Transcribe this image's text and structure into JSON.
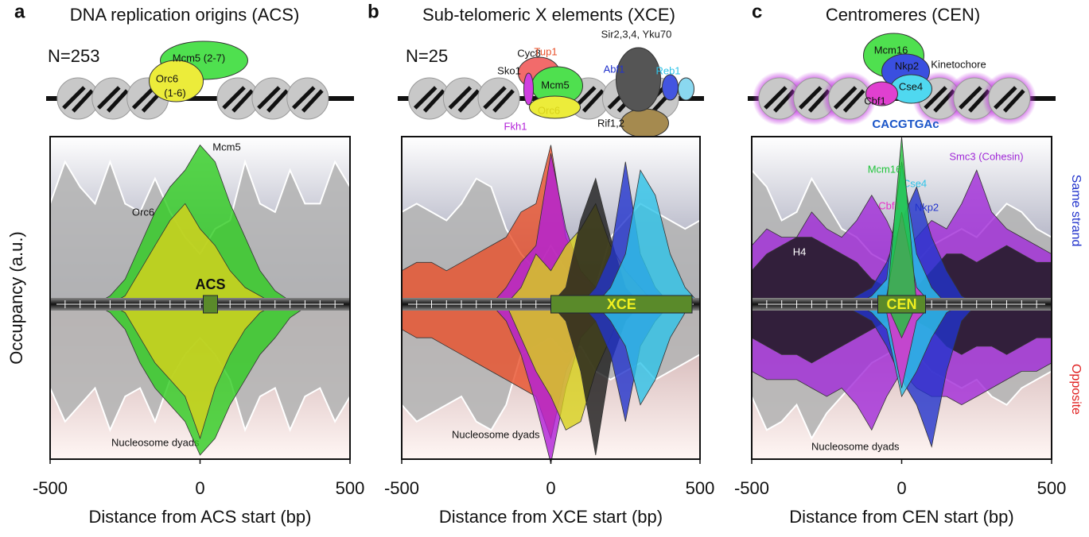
{
  "chart_data": [
    {
      "type": "area",
      "panel": "a",
      "title": "DNA replication origins (ACS)",
      "n_label": "N=253",
      "feature": "ACS",
      "xlabel": "Distance from ACS start (bp)",
      "ylabel": "Occupancy (a.u.)",
      "xlim": [
        -500,
        500
      ],
      "xticks": [
        -500,
        0,
        500
      ],
      "ylim": [
        -100,
        100
      ],
      "diagram_labels": [
        "Mcm5 (2-7)",
        "Orc6",
        "(1-6)"
      ],
      "x": [
        -500,
        -450,
        -400,
        -350,
        -300,
        -250,
        -200,
        -150,
        -100,
        -50,
        0,
        50,
        100,
        150,
        200,
        250,
        300,
        350,
        400,
        450,
        500
      ],
      "series": [
        {
          "name": "Nucleosome dyads",
          "color": "#b5b5b5",
          "values": [
            60,
            85,
            70,
            60,
            85,
            60,
            55,
            75,
            55,
            40,
            30,
            45,
            50,
            85,
            60,
            55,
            80,
            60,
            60,
            85,
            70
          ],
          "opposite": [
            -50,
            -70,
            -60,
            -50,
            -75,
            -55,
            -50,
            -70,
            -45,
            -30,
            -20,
            -30,
            -45,
            -75,
            -55,
            -50,
            -75,
            -55,
            -50,
            -70,
            -55
          ]
        },
        {
          "name": "Mcm5",
          "color": "#2ecc1f",
          "values": [
            0,
            0,
            0,
            0,
            5,
            15,
            35,
            55,
            70,
            80,
            95,
            85,
            60,
            40,
            20,
            8,
            2,
            0,
            0,
            0,
            0
          ],
          "opposite": [
            0,
            0,
            0,
            0,
            -5,
            -15,
            -35,
            -50,
            -60,
            -70,
            -90,
            -80,
            -60,
            -45,
            -30,
            -20,
            -8,
            -2,
            0,
            0,
            0
          ]
        },
        {
          "name": "Orc6",
          "color": "#d8d21c",
          "values": [
            0,
            0,
            0,
            0,
            0,
            5,
            20,
            35,
            50,
            60,
            45,
            35,
            20,
            10,
            5,
            0,
            0,
            0,
            0,
            0,
            0
          ],
          "opposite": [
            0,
            0,
            0,
            0,
            0,
            -5,
            -20,
            -35,
            -45,
            -55,
            -80,
            -50,
            -30,
            -15,
            -5,
            0,
            0,
            0,
            0,
            0,
            0
          ]
        }
      ]
    },
    {
      "type": "area",
      "panel": "b",
      "title": "Sub-telomeric X elements (XCE)",
      "n_label": "N=25",
      "feature": "XCE",
      "xlabel": "Distance from XCE start (bp)",
      "xlim": [
        -500,
        500
      ],
      "xticks": [
        -500,
        0,
        500
      ],
      "ylim": [
        -100,
        100
      ],
      "diagram_labels": [
        "Cyc8",
        "Sko1",
        "Mcm5",
        "Rif1,2"
      ],
      "x": [
        -500,
        -450,
        -400,
        -350,
        -300,
        -250,
        -200,
        -150,
        -100,
        -50,
        0,
        50,
        100,
        150,
        200,
        250,
        300,
        350,
        400,
        450,
        500
      ],
      "series": [
        {
          "name": "Nucleosome dyads",
          "color": "#b5b5b5",
          "values": [
            55,
            60,
            55,
            50,
            60,
            75,
            70,
            45,
            30,
            20,
            35,
            20,
            15,
            10,
            40,
            50,
            60,
            55,
            50,
            45,
            50
          ],
          "opposite": [
            -60,
            -70,
            -65,
            -60,
            -55,
            -70,
            -75,
            -60,
            -30,
            -25,
            -20,
            -30,
            -25,
            -40,
            -45,
            -40,
            -35,
            -45,
            -40,
            -35,
            -30
          ]
        },
        {
          "name": "Tup1",
          "color": "#e8502a",
          "values": [
            20,
            25,
            25,
            20,
            25,
            30,
            35,
            40,
            55,
            60,
            95,
            40,
            20,
            10,
            5,
            0,
            0,
            0,
            0,
            0,
            0
          ],
          "opposite": [
            -15,
            -20,
            -20,
            -25,
            -30,
            -35,
            -40,
            -45,
            -50,
            -55,
            -80,
            -40,
            -20,
            -10,
            0,
            0,
            0,
            0,
            0,
            0,
            0
          ]
        },
        {
          "name": "Fkh1",
          "color": "#b21fd8",
          "values": [
            0,
            0,
            0,
            0,
            0,
            0,
            0,
            10,
            25,
            35,
            90,
            45,
            20,
            10,
            5,
            0,
            0,
            0,
            0,
            0,
            0
          ],
          "opposite": [
            0,
            0,
            0,
            0,
            0,
            0,
            0,
            -10,
            -30,
            -60,
            -95,
            -50,
            -20,
            -10,
            0,
            0,
            0,
            0,
            0,
            0,
            0
          ]
        },
        {
          "name": "Orc6",
          "color": "#d8d21c",
          "values": [
            0,
            0,
            0,
            0,
            0,
            0,
            0,
            0,
            10,
            30,
            20,
            35,
            45,
            60,
            35,
            20,
            10,
            0,
            0,
            0,
            0
          ],
          "opposite": [
            0,
            0,
            0,
            0,
            0,
            0,
            0,
            0,
            -20,
            -40,
            -55,
            -75,
            -70,
            -40,
            -20,
            0,
            0,
            0,
            0,
            0,
            0
          ]
        },
        {
          "name": "Sir2,3,4, Yku70",
          "color": "#1a1a1a",
          "values": [
            0,
            0,
            0,
            0,
            0,
            0,
            0,
            0,
            0,
            0,
            0,
            10,
            50,
            75,
            40,
            10,
            0,
            0,
            0,
            0,
            0
          ],
          "opposite": [
            0,
            0,
            0,
            0,
            0,
            0,
            0,
            0,
            0,
            0,
            0,
            -10,
            -40,
            -90,
            -35,
            -10,
            0,
            0,
            0,
            0,
            0
          ]
        },
        {
          "name": "Abf1",
          "color": "#2233cc",
          "values": [
            0,
            0,
            0,
            0,
            0,
            0,
            0,
            0,
            0,
            0,
            0,
            0,
            0,
            10,
            30,
            85,
            30,
            10,
            0,
            0,
            0
          ],
          "opposite": [
            0,
            0,
            0,
            0,
            0,
            0,
            0,
            0,
            0,
            0,
            0,
            0,
            0,
            -10,
            -30,
            -70,
            -25,
            -10,
            0,
            0,
            0
          ]
        },
        {
          "name": "Reb1",
          "color": "#2ec3e8",
          "values": [
            0,
            0,
            0,
            0,
            0,
            0,
            0,
            0,
            0,
            0,
            0,
            0,
            0,
            0,
            10,
            30,
            80,
            65,
            30,
            10,
            0
          ],
          "opposite": [
            0,
            0,
            0,
            0,
            0,
            0,
            0,
            0,
            0,
            0,
            0,
            0,
            0,
            0,
            -10,
            -25,
            -60,
            -45,
            -20,
            -5,
            0
          ]
        }
      ]
    },
    {
      "type": "area",
      "panel": "c",
      "title": "Centromeres (CEN)",
      "feature": "CEN",
      "motif": "CACGTGAc",
      "xlabel": "Distance from CEN start (bp)",
      "strand_labels": [
        "Same strand",
        "Opposite"
      ],
      "xlim": [
        -500,
        500
      ],
      "xticks": [
        -500,
        0,
        500
      ],
      "ylim": [
        -100,
        100
      ],
      "diagram_labels": [
        "Mcm16",
        "Kinetochore",
        "Nkp2",
        "Cse4",
        "Cbf1"
      ],
      "x": [
        -500,
        -450,
        -400,
        -350,
        -300,
        -250,
        -200,
        -150,
        -100,
        -50,
        0,
        50,
        100,
        150,
        200,
        250,
        300,
        350,
        400,
        450,
        500
      ],
      "series": [
        {
          "name": "Nucleosome dyads",
          "color": "#b5b5b5",
          "values": [
            80,
            70,
            50,
            55,
            75,
            60,
            45,
            40,
            30,
            25,
            20,
            25,
            35,
            40,
            45,
            40,
            50,
            60,
            55,
            45,
            40
          ],
          "opposite": [
            -55,
            -75,
            -70,
            -60,
            -80,
            -65,
            -55,
            -45,
            -35,
            -30,
            -25,
            -30,
            -40,
            -45,
            -50,
            -45,
            -55,
            -60,
            -50,
            -45,
            -40
          ]
        },
        {
          "name": "Smc3 (Cohesin)",
          "color": "#a12ad8",
          "values": [
            35,
            45,
            40,
            40,
            55,
            45,
            40,
            50,
            65,
            50,
            30,
            40,
            50,
            45,
            60,
            80,
            55,
            45,
            40,
            35,
            30
          ],
          "opposite": [
            -40,
            -45,
            -45,
            -45,
            -50,
            -55,
            -50,
            -60,
            -75,
            -55,
            -40,
            -50,
            -55,
            -55,
            -60,
            -55,
            -50,
            -45,
            -40,
            -40,
            -35
          ]
        },
        {
          "name": "H4",
          "color": "#151515",
          "values": [
            20,
            30,
            35,
            40,
            40,
            35,
            30,
            25,
            15,
            10,
            5,
            10,
            20,
            30,
            30,
            25,
            30,
            35,
            30,
            25,
            25
          ],
          "opposite": [
            -20,
            -25,
            -30,
            -30,
            -35,
            -30,
            -25,
            -20,
            -15,
            -10,
            -5,
            -10,
            -15,
            -25,
            -30,
            -25,
            -25,
            -30,
            -25,
            -20,
            -20
          ]
        },
        {
          "name": "Nkp2",
          "color": "#2233cc",
          "values": [
            0,
            0,
            0,
            0,
            0,
            0,
            0,
            5,
            10,
            25,
            50,
            70,
            40,
            20,
            5,
            0,
            0,
            0,
            0,
            0,
            0
          ],
          "opposite": [
            0,
            0,
            0,
            0,
            0,
            0,
            0,
            -5,
            -10,
            -25,
            -45,
            -60,
            -85,
            -40,
            -10,
            0,
            0,
            0,
            0,
            0,
            0
          ]
        },
        {
          "name": "Cse4",
          "color": "#2ec3e8",
          "values": [
            0,
            0,
            0,
            0,
            0,
            0,
            0,
            0,
            5,
            15,
            85,
            30,
            10,
            0,
            0,
            0,
            0,
            0,
            0,
            0,
            0
          ],
          "opposite": [
            0,
            0,
            0,
            0,
            0,
            0,
            0,
            0,
            -5,
            -15,
            -55,
            -40,
            -20,
            -5,
            0,
            0,
            0,
            0,
            0,
            0,
            0
          ]
        },
        {
          "name": "Cbf1",
          "color": "#e82ec8",
          "values": [
            0,
            0,
            0,
            0,
            0,
            0,
            0,
            0,
            0,
            5,
            55,
            10,
            0,
            0,
            0,
            0,
            0,
            0,
            0,
            0,
            0
          ],
          "opposite": [
            0,
            0,
            0,
            0,
            0,
            0,
            0,
            0,
            0,
            -5,
            -50,
            -10,
            0,
            0,
            0,
            0,
            0,
            0,
            0,
            0,
            0
          ]
        },
        {
          "name": "Mcm16",
          "color": "#1fc43a",
          "values": [
            0,
            0,
            0,
            0,
            0,
            0,
            0,
            0,
            0,
            0,
            100,
            0,
            0,
            0,
            0,
            0,
            0,
            0,
            0,
            0,
            0
          ],
          "opposite": [
            0,
            0,
            0,
            0,
            0,
            0,
            0,
            0,
            0,
            0,
            -20,
            0,
            0,
            0,
            0,
            0,
            0,
            0,
            0,
            0,
            0
          ]
        }
      ]
    }
  ]
}
